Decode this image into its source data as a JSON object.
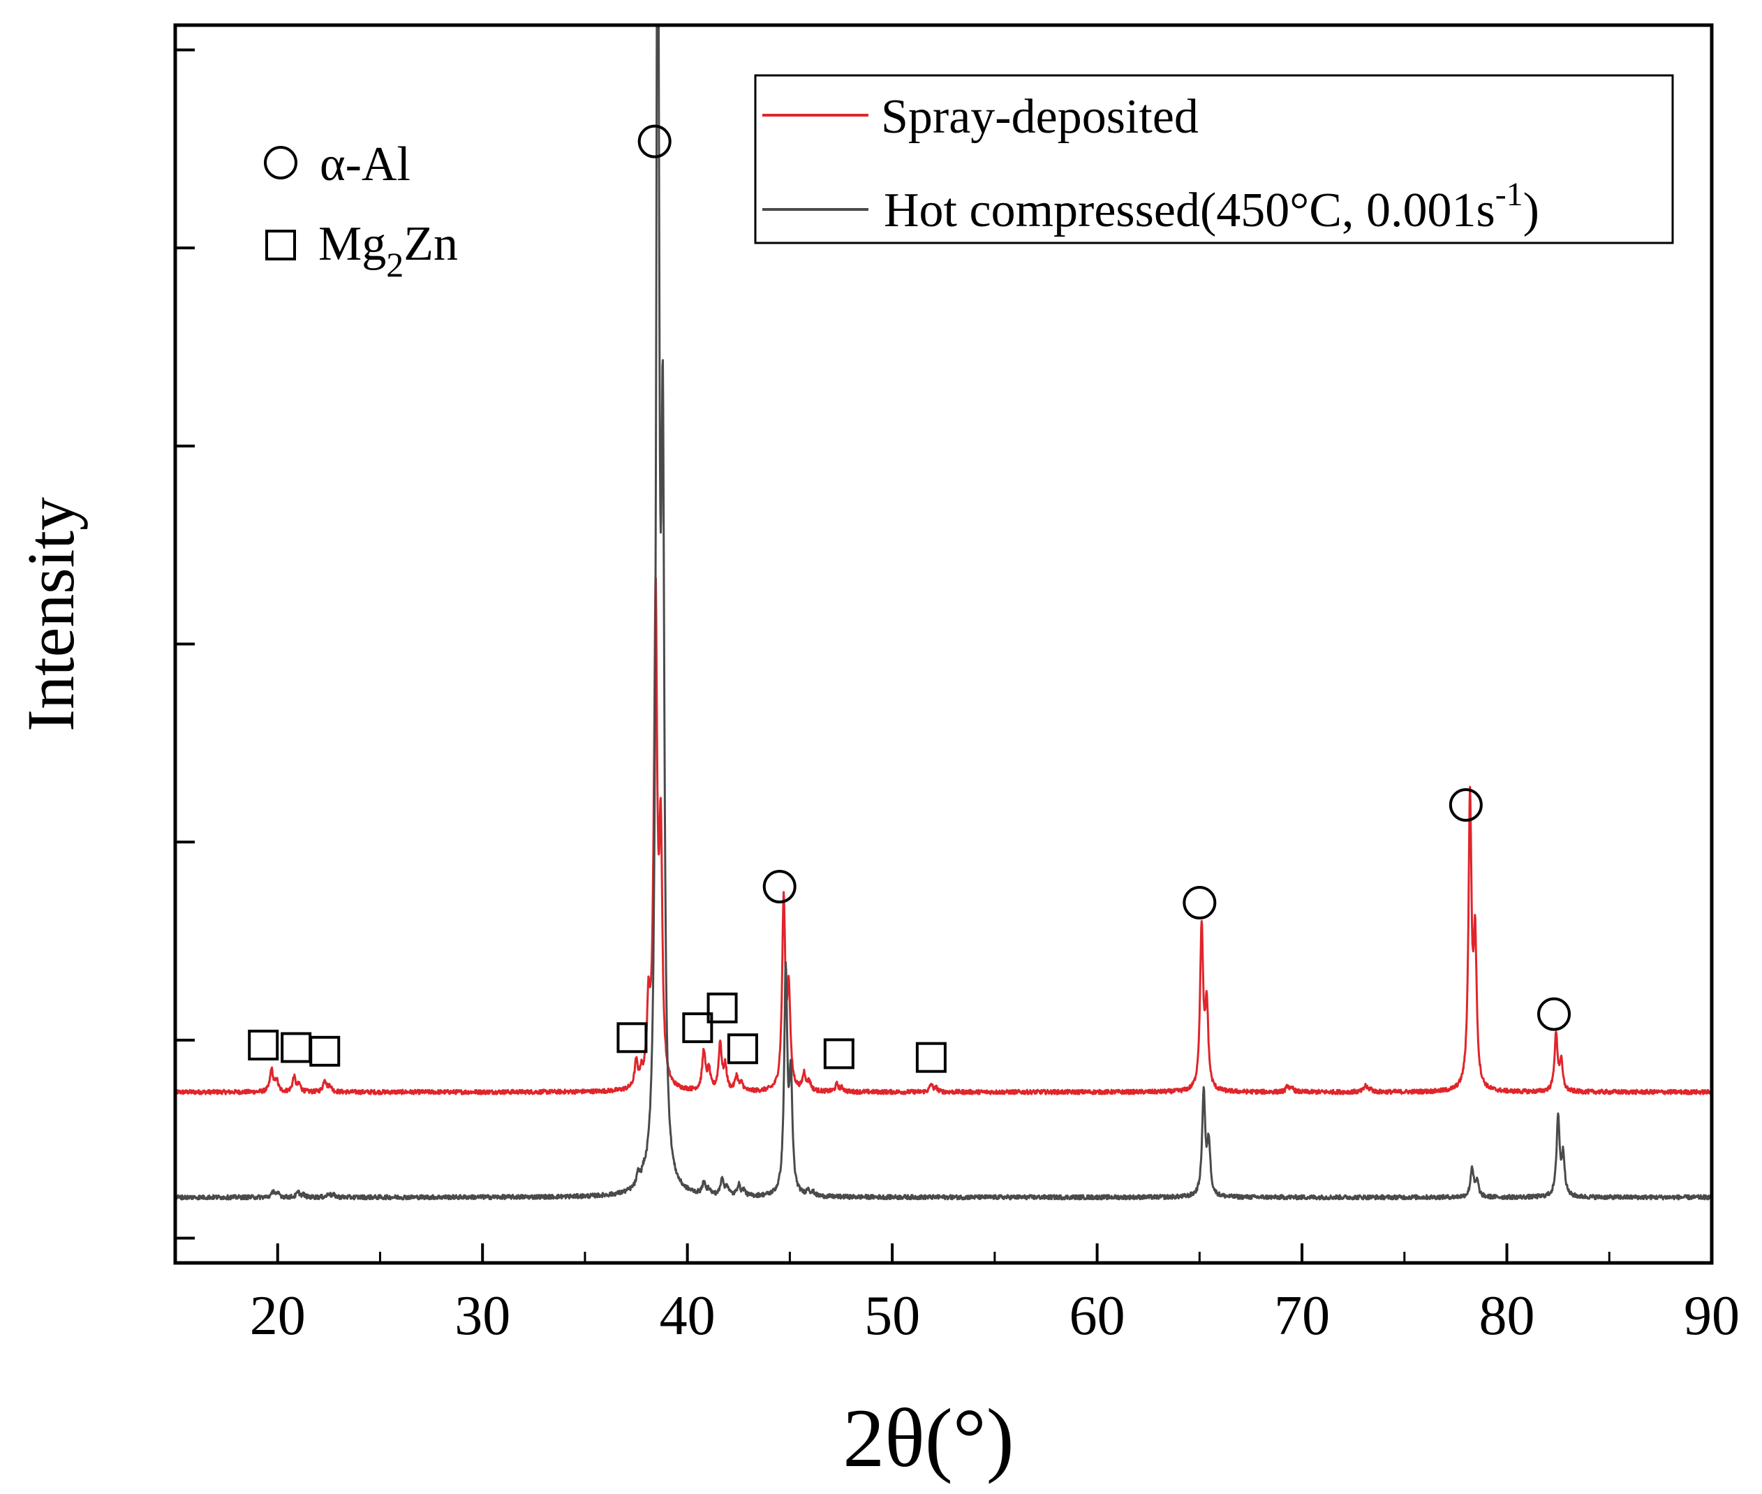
{
  "chart_data": {
    "type": "line",
    "title": "",
    "xlabel": "2θ(°)",
    "ylabel": "Intensity",
    "xlim": [
      15,
      90
    ],
    "xticks": [
      20,
      30,
      40,
      50,
      60,
      70,
      80,
      90
    ],
    "xtick_labels": [
      "20",
      "30",
      "40",
      "50",
      "60",
      "70",
      "80",
      "90"
    ],
    "ylim": [
      0,
      100
    ],
    "grid": false,
    "legend": {
      "position": "top-right",
      "entries": [
        {
          "series": "spray",
          "label": "Spray-deposited"
        },
        {
          "series": "hot",
          "label": "Hot compressed(450°C, 0.001s",
          "label_sup": "-1",
          "label_suffix": ")"
        }
      ]
    },
    "phase_key": {
      "position": "top-left",
      "entries": [
        {
          "marker": "circle",
          "label": "α-Al"
        },
        {
          "marker": "square",
          "label": "Mg",
          "label_sub": "2",
          "label_suffix": "Zn"
        }
      ]
    },
    "series": [
      {
        "name": "Spray-deposited",
        "color": "#e0252b",
        "baseline": 13.8,
        "peaks": [
          {
            "x": 19.7,
            "h": 1.8
          },
          {
            "x": 20.8,
            "h": 1.2
          },
          {
            "x": 22.3,
            "h": 1.0
          },
          {
            "x": 37.5,
            "h": 2.0
          },
          {
            "x": 38.1,
            "h": 6.0
          },
          {
            "x": 38.45,
            "h": 38.0
          },
          {
            "x": 40.8,
            "h": 3.2
          },
          {
            "x": 41.6,
            "h": 3.8
          },
          {
            "x": 42.4,
            "h": 1.2
          },
          {
            "x": 44.7,
            "h": 15.2
          },
          {
            "x": 45.7,
            "h": 1.4
          },
          {
            "x": 47.3,
            "h": 0.6
          },
          {
            "x": 51.9,
            "h": 0.6
          },
          {
            "x": 65.1,
            "h": 13.2
          },
          {
            "x": 69.3,
            "h": 0.5
          },
          {
            "x": 73.1,
            "h": 0.5
          },
          {
            "x": 78.2,
            "h": 23.2
          },
          {
            "x": 82.4,
            "h": 4.6
          }
        ]
      },
      {
        "name": "Hot compressed(450°C, 0.001s-1)",
        "color": "#4a4a4a",
        "baseline": 5.3,
        "peaks": [
          {
            "x": 19.8,
            "h": 0.5
          },
          {
            "x": 21.0,
            "h": 0.4
          },
          {
            "x": 22.5,
            "h": 0.3
          },
          {
            "x": 37.6,
            "h": 0.9
          },
          {
            "x": 38.55,
            "h": 110.0
          },
          {
            "x": 40.8,
            "h": 0.9
          },
          {
            "x": 41.7,
            "h": 1.4
          },
          {
            "x": 42.5,
            "h": 0.9
          },
          {
            "x": 44.8,
            "h": 18.0
          },
          {
            "x": 45.9,
            "h": 0.5
          },
          {
            "x": 65.2,
            "h": 8.4
          },
          {
            "x": 78.3,
            "h": 2.4
          },
          {
            "x": 82.5,
            "h": 6.4
          }
        ]
      }
    ],
    "annotations": [
      {
        "marker": "circle",
        "x": 38.4,
        "y": 90.6
      },
      {
        "marker": "circle",
        "x": 44.5,
        "y": 30.4
      },
      {
        "marker": "circle",
        "x": 65.0,
        "y": 29.1
      },
      {
        "marker": "circle",
        "x": 78.0,
        "y": 37.0
      },
      {
        "marker": "circle",
        "x": 82.3,
        "y": 20.1
      },
      {
        "marker": "square",
        "x": 19.3,
        "y": 17.6
      },
      {
        "marker": "square",
        "x": 20.9,
        "y": 17.4
      },
      {
        "marker": "square",
        "x": 22.3,
        "y": 17.1
      },
      {
        "marker": "square",
        "x": 37.3,
        "y": 18.2
      },
      {
        "marker": "square",
        "x": 40.5,
        "y": 19.0
      },
      {
        "marker": "square",
        "x": 41.7,
        "y": 20.6
      },
      {
        "marker": "square",
        "x": 42.7,
        "y": 17.3
      },
      {
        "marker": "square",
        "x": 47.4,
        "y": 16.9
      },
      {
        "marker": "square",
        "x": 51.9,
        "y": 16.6
      }
    ]
  }
}
